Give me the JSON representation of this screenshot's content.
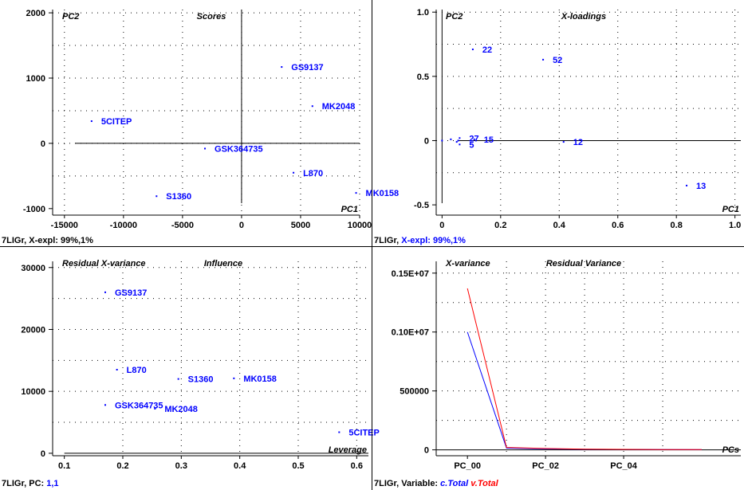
{
  "colors": {
    "points": "#0000ff",
    "axis": "#000000",
    "grid": "#000000",
    "series_blue": "#0000ff",
    "series_red": "#ff0000"
  },
  "footers": {
    "top_left": {
      "prefix": "7LIGr, ",
      "rest": "X-expl: 99%,1%"
    },
    "top_right": {
      "prefix": "7LIGr, ",
      "rest": "X-expl: 99%,1%"
    },
    "bottom_left": {
      "prefix": "7LIGr, PC: ",
      "rest": "1,1"
    },
    "bottom_right": {
      "prefix": "7LIGr, Variable: ",
      "rest1": "c.Total",
      "rest2": "v.Total"
    }
  },
  "chart_data": [
    {
      "id": "scores",
      "type": "scatter",
      "title": "Scores",
      "ylabel": "PC2",
      "xlabel": "PC1",
      "xlim": [
        -16000,
        10000
      ],
      "ylim": [
        -1100,
        2050
      ],
      "xticks": [
        -15000,
        -10000,
        -5000,
        0,
        5000,
        10000
      ],
      "xtick_labels": [
        "-15000",
        "-10000",
        "-5000",
        "0",
        "5000",
        "10000"
      ],
      "yticks": [
        -1000,
        0,
        1000,
        2000
      ],
      "ytick_labels": [
        "-1000",
        "0",
        "1000",
        "2000"
      ],
      "xgrid": [
        -15000,
        -10000,
        -5000,
        0,
        5000,
        10000
      ],
      "ygrid": [
        -500,
        0,
        500,
        1000,
        1500,
        2000
      ],
      "zero_lines": true,
      "points": [
        {
          "label": "5CITEP",
          "x": -12700,
          "y": 340
        },
        {
          "label": "GSK364735",
          "x": -3100,
          "y": -80
        },
        {
          "label": "S1360",
          "x": -7200,
          "y": -810
        },
        {
          "label": "GS9137",
          "x": 3400,
          "y": 1170
        },
        {
          "label": "MK2048",
          "x": 6000,
          "y": 570
        },
        {
          "label": "L870",
          "x": 4400,
          "y": -450
        },
        {
          "label": "MK0158",
          "x": 9700,
          "y": -760
        }
      ]
    },
    {
      "id": "x-loadings",
      "type": "scatter",
      "title": "X-loadings",
      "ylabel": "PC2",
      "xlabel": "PC1",
      "xlim": [
        -0.02,
        1.02
      ],
      "ylim": [
        -0.58,
        1.02
      ],
      "xticks": [
        0,
        0.2,
        0.4,
        0.6,
        0.8,
        1.0
      ],
      "xtick_labels": [
        "0",
        "0.2",
        "0.4",
        "0.6",
        "0.8",
        "1.0"
      ],
      "yticks": [
        -0.5,
        0,
        0.5,
        1.0
      ],
      "ytick_labels": [
        "-0.5",
        "0",
        "0.5",
        "1.0"
      ],
      "xgrid": [
        0.2,
        0.4,
        0.6,
        0.8,
        1.0
      ],
      "ygrid": [
        -0.25,
        0,
        0.25,
        0.5,
        0.75,
        1.0
      ],
      "zero_lines": true,
      "points": [
        {
          "label": "22",
          "x": 0.105,
          "y": 0.71
        },
        {
          "label": "52",
          "x": 0.345,
          "y": 0.63
        },
        {
          "label": "27",
          "x": 0.06,
          "y": 0.02
        },
        {
          "label": "15",
          "x": 0.11,
          "y": 0.01
        },
        {
          "label": "12",
          "x": 0.415,
          "y": -0.01
        },
        {
          "label": "13",
          "x": 0.835,
          "y": -0.35
        },
        {
          "label": "",
          "x": 0.0,
          "y": 0.0
        },
        {
          "label": "",
          "x": 0.03,
          "y": 0.01
        },
        {
          "label": "",
          "x": 0.05,
          "y": -0.01
        },
        {
          "label": "",
          "x": 0.055,
          "y": 0.0
        },
        {
          "label": "5",
          "x": 0.06,
          "y": -0.03
        }
      ]
    },
    {
      "id": "influence",
      "type": "scatter",
      "title": "Influence",
      "ylabel": "Residual X-variance",
      "xlabel": "Leverage",
      "xlim": [
        0.08,
        0.62
      ],
      "ylim": [
        -400,
        31000
      ],
      "xticks": [
        0.1,
        0.2,
        0.3,
        0.4,
        0.5,
        0.6
      ],
      "xtick_labels": [
        "0.1",
        "0.2",
        "0.3",
        "0.4",
        "0.5",
        "0.6"
      ],
      "yticks": [
        0,
        10000,
        20000,
        30000
      ],
      "ytick_labels": [
        "0",
        "10000",
        "20000",
        "30000"
      ],
      "xgrid": [
        0.2,
        0.3,
        0.4,
        0.5,
        0.6
      ],
      "ygrid": [
        5000,
        10000,
        15000,
        20000,
        25000,
        30000
      ],
      "zero_lines": false,
      "baseline_y": 0,
      "baseline_x_from": 0.1,
      "points": [
        {
          "label": "GS9137",
          "x": 0.17,
          "y": 26000
        },
        {
          "label": "L870",
          "x": 0.19,
          "y": 13500
        },
        {
          "label": "S1360",
          "x": 0.295,
          "y": 12000
        },
        {
          "label": "MK0158",
          "x": 0.39,
          "y": 12100
        },
        {
          "label": "GSK364735",
          "x": 0.17,
          "y": 7800
        },
        {
          "label": "MK2048",
          "x": 0.255,
          "y": 7200
        },
        {
          "label": "5CITEP",
          "x": 0.57,
          "y": 3400
        }
      ]
    },
    {
      "id": "residual-variance",
      "type": "line",
      "title": "Residual  Variance",
      "ylabel": "X-variance",
      "xlabel": "PCs",
      "xlim": [
        -0.8,
        7.0
      ],
      "ylim": [
        -50000,
        1600000
      ],
      "xticks": [
        0,
        2,
        4
      ],
      "xtick_labels": [
        "PC_00",
        "PC_02",
        "PC_04"
      ],
      "yticks": [
        0,
        500000,
        1000000,
        1500000
      ],
      "ytick_labels": [
        "0",
        "500000",
        "0.10E+07",
        "0.15E+07"
      ],
      "xgrid": [
        1,
        2,
        3,
        4,
        5
      ],
      "ygrid": [
        250000,
        500000,
        750000,
        1000000,
        1250000,
        1500000
      ],
      "zero_lines": false,
      "baseline_y": 0,
      "baseline_x_from": -0.8,
      "x": [
        0,
        1,
        2,
        3,
        4,
        5,
        6
      ],
      "series": [
        {
          "name": "c.Total",
          "color": "#0000ff",
          "values": [
            1000000,
            15000,
            8000,
            5000,
            3000,
            2000,
            1500
          ]
        },
        {
          "name": "v.Total",
          "color": "#ff0000",
          "values": [
            1370000,
            20000,
            12000,
            6000,
            4000,
            2500,
            2000
          ]
        }
      ]
    }
  ]
}
